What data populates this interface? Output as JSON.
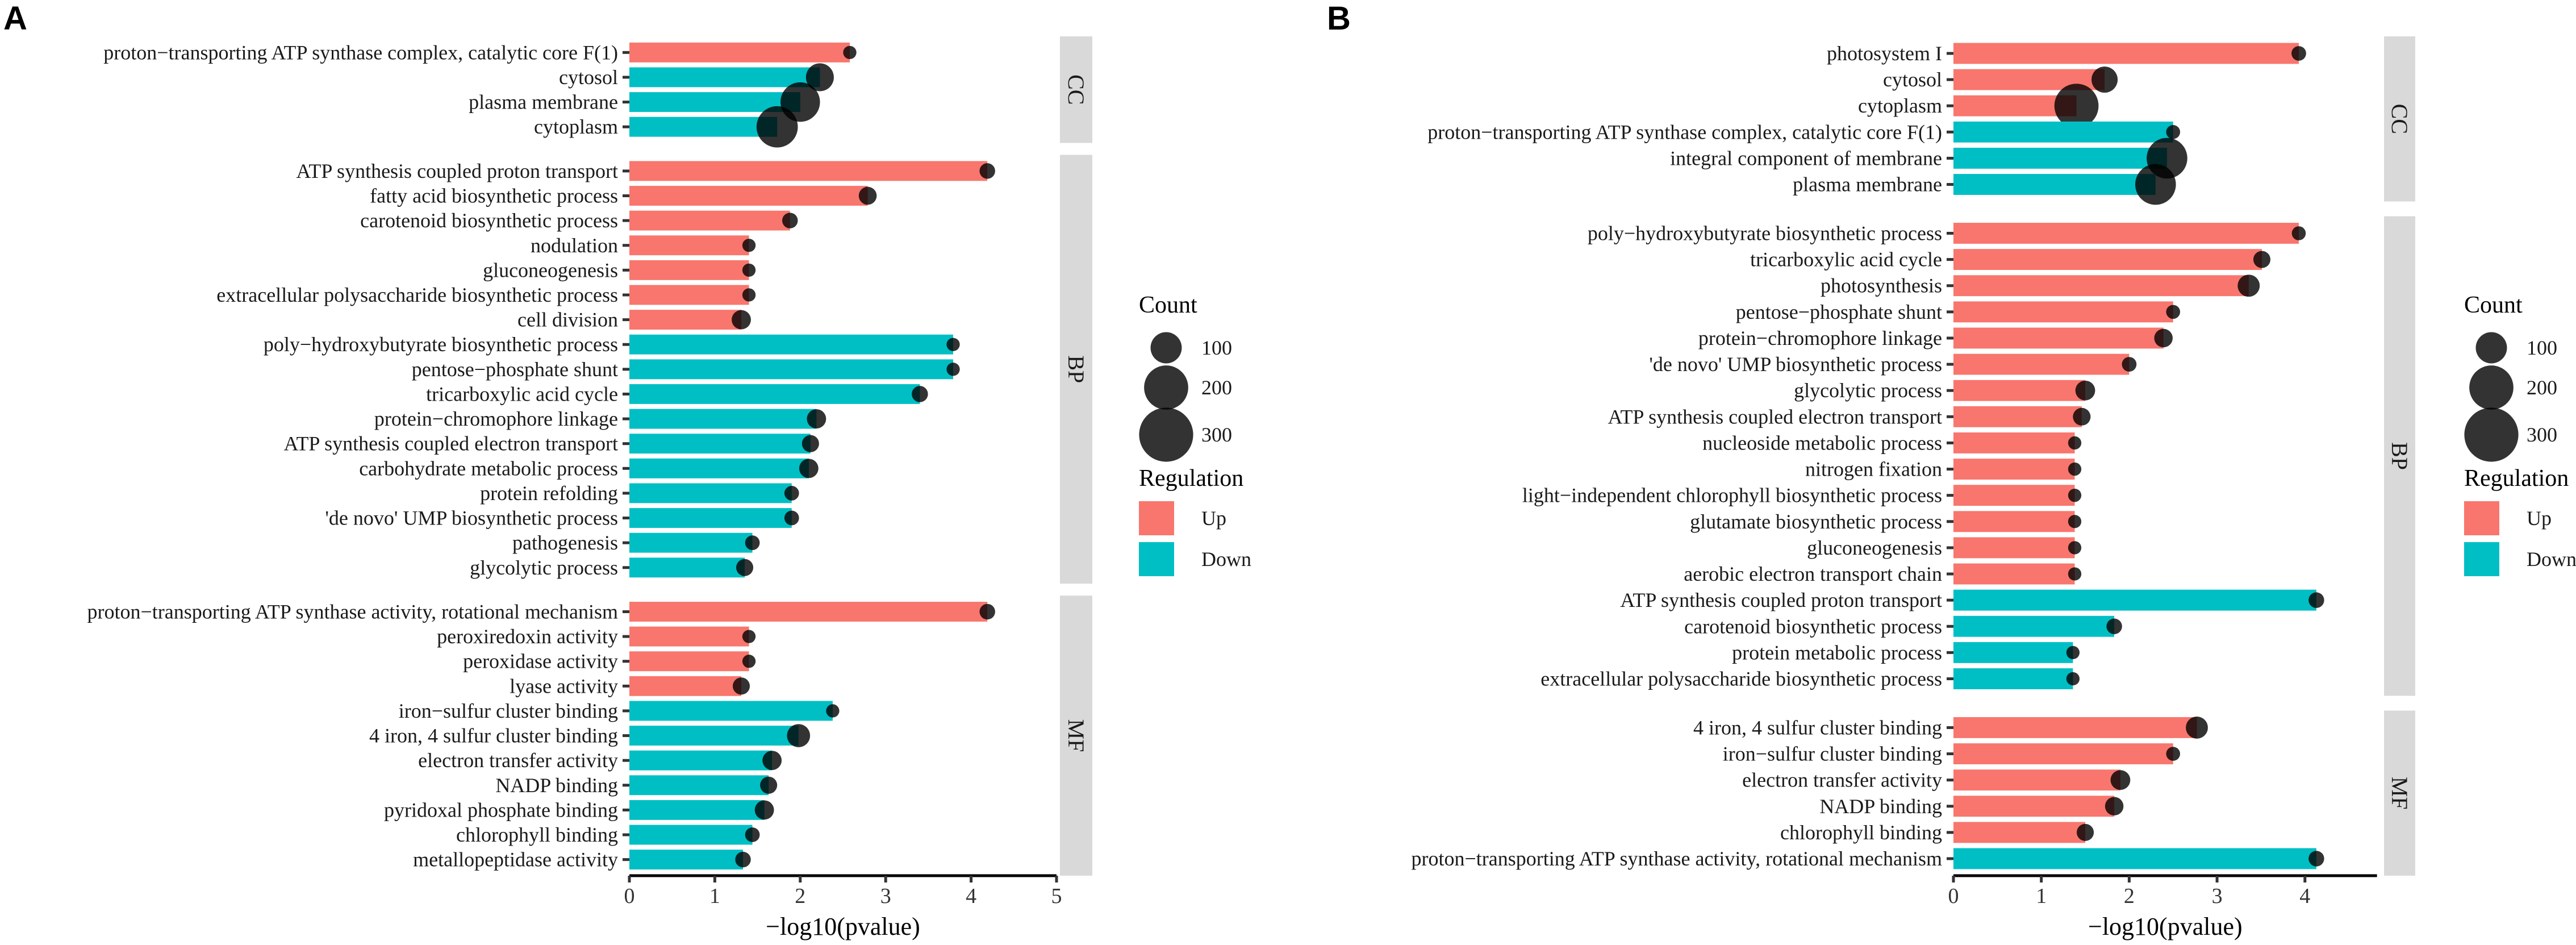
{
  "colors": {
    "Up": "#F8766D",
    "Down": "#00BFC4",
    "dot": "#000000",
    "strip": "#D9D9D9"
  },
  "chart_data": [
    {
      "type": "bar",
      "panel_label": "A",
      "xlabel": "−log10(pvalue)",
      "xlim": [
        0,
        5
      ],
      "xticks": [
        "0",
        "1",
        "2",
        "3",
        "4",
        "5"
      ],
      "legend": {
        "count_title": "Count",
        "count_values": [
          "100",
          "200",
          "300"
        ],
        "regulation_title": "Regulation",
        "regulation_values": [
          "Up",
          "Down"
        ],
        "placement": "right"
      },
      "facets": [
        {
          "name": "CC",
          "terms": [
            {
              "term": "proton−transporting ATP synthase complex, catalytic core F(1)",
              "value": 2.58,
              "count": 18,
              "regulation": "Up"
            },
            {
              "term": "cytosol",
              "value": 2.23,
              "count": 80,
              "regulation": "Down"
            },
            {
              "term": "plasma membrane",
              "value": 2.0,
              "count": 160,
              "regulation": "Down"
            },
            {
              "term": "cytoplasm",
              "value": 1.73,
              "count": 175,
              "regulation": "Down"
            }
          ]
        },
        {
          "name": "BP",
          "terms": [
            {
              "term": "ATP synthesis coupled proton transport",
              "value": 4.19,
              "count": 25,
              "regulation": "Up"
            },
            {
              "term": "fatty acid biosynthetic process",
              "value": 2.79,
              "count": 33,
              "regulation": "Up"
            },
            {
              "term": "carotenoid biosynthetic process",
              "value": 1.88,
              "count": 25,
              "regulation": "Up"
            },
            {
              "term": "nodulation",
              "value": 1.4,
              "count": 18,
              "regulation": "Up"
            },
            {
              "term": "gluconeogenesis",
              "value": 1.4,
              "count": 18,
              "regulation": "Up"
            },
            {
              "term": "extracellular polysaccharide biosynthetic process",
              "value": 1.4,
              "count": 18,
              "regulation": "Up"
            },
            {
              "term": "cell division",
              "value": 1.31,
              "count": 38,
              "regulation": "Up"
            },
            {
              "term": "poly−hydroxybutyrate biosynthetic process",
              "value": 3.79,
              "count": 18,
              "regulation": "Down"
            },
            {
              "term": "pentose−phosphate shunt",
              "value": 3.79,
              "count": 18,
              "regulation": "Down"
            },
            {
              "term": "tricarboxylic acid cycle",
              "value": 3.4,
              "count": 27,
              "regulation": "Down"
            },
            {
              "term": "protein−chromophore linkage",
              "value": 2.19,
              "count": 38,
              "regulation": "Down"
            },
            {
              "term": "ATP synthesis coupled electron transport",
              "value": 2.12,
              "count": 30,
              "regulation": "Down"
            },
            {
              "term": "carbohydrate metabolic process",
              "value": 2.1,
              "count": 38,
              "regulation": "Down"
            },
            {
              "term": "protein refolding",
              "value": 1.9,
              "count": 22,
              "regulation": "Down"
            },
            {
              "term": "'de novo' UMP biosynthetic process ",
              "value": 1.9,
              "count": 22,
              "regulation": "Down"
            },
            {
              "term": "pathogenesis",
              "value": 1.44,
              "count": 22,
              "regulation": "Down"
            },
            {
              "term": "glycolytic process",
              "value": 1.35,
              "count": 30,
              "regulation": "Down"
            }
          ]
        },
        {
          "name": "MF",
          "terms": [
            {
              "term": "proton−transporting ATP synthase activity, rotational mechanism",
              "value": 4.19,
              "count": 25,
              "regulation": "Up"
            },
            {
              "term": "peroxiredoxin activity",
              "value": 1.4,
              "count": 18,
              "regulation": "Up"
            },
            {
              "term": "peroxidase activity",
              "value": 1.4,
              "count": 18,
              "regulation": "Up"
            },
            {
              "term": "lyase activity",
              "value": 1.31,
              "count": 30,
              "regulation": "Up"
            },
            {
              "term": "iron−sulfur cluster binding",
              "value": 2.38,
              "count": 18,
              "regulation": "Down"
            },
            {
              "term": "4 iron, 4 sulfur cluster binding",
              "value": 1.98,
              "count": 55,
              "regulation": "Down"
            },
            {
              "term": "electron transfer activity",
              "value": 1.67,
              "count": 38,
              "regulation": "Down"
            },
            {
              "term": "NADP binding",
              "value": 1.63,
              "count": 30,
              "regulation": "Down"
            },
            {
              "term": "pyridoxal phosphate binding",
              "value": 1.58,
              "count": 38,
              "regulation": "Down"
            },
            {
              "term": "chlorophyll binding",
              "value": 1.44,
              "count": 22,
              "regulation": "Down"
            },
            {
              "term": "metallopeptidase activity",
              "value": 1.33,
              "count": 25,
              "regulation": "Down"
            }
          ]
        }
      ]
    },
    {
      "type": "bar",
      "panel_label": "B",
      "xlabel": "−log10(pvalue)",
      "xlim": [
        0,
        4.82
      ],
      "xticks": [
        "0",
        "1",
        "2",
        "3",
        "4"
      ],
      "legend": {
        "count_title": "Count",
        "count_values": [
          "100",
          "200",
          "300"
        ],
        "regulation_title": "Regulation",
        "regulation_values": [
          "Up",
          "Down"
        ],
        "placement": "right"
      },
      "facets": [
        {
          "name": "CC",
          "terms": [
            {
              "term": "photosystem I",
              "value": 3.93,
              "count": 22,
              "regulation": "Up"
            },
            {
              "term": "cytosol",
              "value": 1.72,
              "count": 70,
              "regulation": "Up"
            },
            {
              "term": "cytoplasm",
              "value": 1.4,
              "count": 200,
              "regulation": "Up"
            },
            {
              "term": "proton−transporting ATP synthase complex, catalytic core F(1)",
              "value": 2.5,
              "count": 20,
              "regulation": "Down"
            },
            {
              "term": "integral component of membrane",
              "value": 2.43,
              "count": 170,
              "regulation": "Down"
            },
            {
              "term": "plasma membrane",
              "value": 2.3,
              "count": 170,
              "regulation": "Down"
            }
          ]
        },
        {
          "name": "BP",
          "terms": [
            {
              "term": "poly−hydroxybutyrate biosynthetic process",
              "value": 3.93,
              "count": 20,
              "regulation": "Up"
            },
            {
              "term": "tricarboxylic acid cycle",
              "value": 3.51,
              "count": 30,
              "regulation": "Up"
            },
            {
              "term": "photosynthesis",
              "value": 3.36,
              "count": 50,
              "regulation": "Up"
            },
            {
              "term": "pentose−phosphate shunt",
              "value": 2.5,
              "count": 20,
              "regulation": "Up"
            },
            {
              "term": "protein−chromophore linkage",
              "value": 2.39,
              "count": 35,
              "regulation": "Up"
            },
            {
              "term": "'de novo' UMP biosynthetic process ",
              "value": 2.0,
              "count": 22,
              "regulation": "Up"
            },
            {
              "term": "glycolytic process",
              "value": 1.5,
              "count": 40,
              "regulation": "Up"
            },
            {
              "term": "ATP synthesis coupled electron transport",
              "value": 1.46,
              "count": 32,
              "regulation": "Up"
            },
            {
              "term": "nucleoside metabolic process",
              "value": 1.38,
              "count": 18,
              "regulation": "Up"
            },
            {
              "term": "nitrogen fixation",
              "value": 1.38,
              "count": 18,
              "regulation": "Up"
            },
            {
              "term": "light−independent chlorophyll biosynthetic process",
              "value": 1.38,
              "count": 18,
              "regulation": "Up"
            },
            {
              "term": "glutamate biosynthetic process",
              "value": 1.38,
              "count": 18,
              "regulation": "Up"
            },
            {
              "term": "gluconeogenesis",
              "value": 1.38,
              "count": 18,
              "regulation": "Up"
            },
            {
              "term": "aerobic electron transport chain",
              "value": 1.38,
              "count": 18,
              "regulation": "Up"
            },
            {
              "term": "ATP synthesis coupled proton transport",
              "value": 4.13,
              "count": 25,
              "regulation": "Down"
            },
            {
              "term": "carotenoid biosynthetic process",
              "value": 1.83,
              "count": 25,
              "regulation": "Down"
            },
            {
              "term": "protein metabolic process",
              "value": 1.36,
              "count": 18,
              "regulation": "Down"
            },
            {
              "term": "extracellular polysaccharide biosynthetic process",
              "value": 1.36,
              "count": 18,
              "regulation": "Down"
            }
          ]
        },
        {
          "name": "MF",
          "terms": [
            {
              "term": "4 iron, 4 sulfur cluster binding",
              "value": 2.77,
              "count": 50,
              "regulation": "Up"
            },
            {
              "term": "iron−sulfur cluster binding",
              "value": 2.5,
              "count": 20,
              "regulation": "Up"
            },
            {
              "term": "electron transfer activity",
              "value": 1.9,
              "count": 40,
              "regulation": "Up"
            },
            {
              "term": "NADP binding",
              "value": 1.83,
              "count": 35,
              "regulation": "Up"
            },
            {
              "term": "chlorophyll binding",
              "value": 1.5,
              "count": 30,
              "regulation": "Up"
            },
            {
              "term": "proton−transporting ATP synthase activity, rotational mechanism",
              "value": 4.13,
              "count": 25,
              "regulation": "Down"
            }
          ]
        }
      ]
    }
  ]
}
